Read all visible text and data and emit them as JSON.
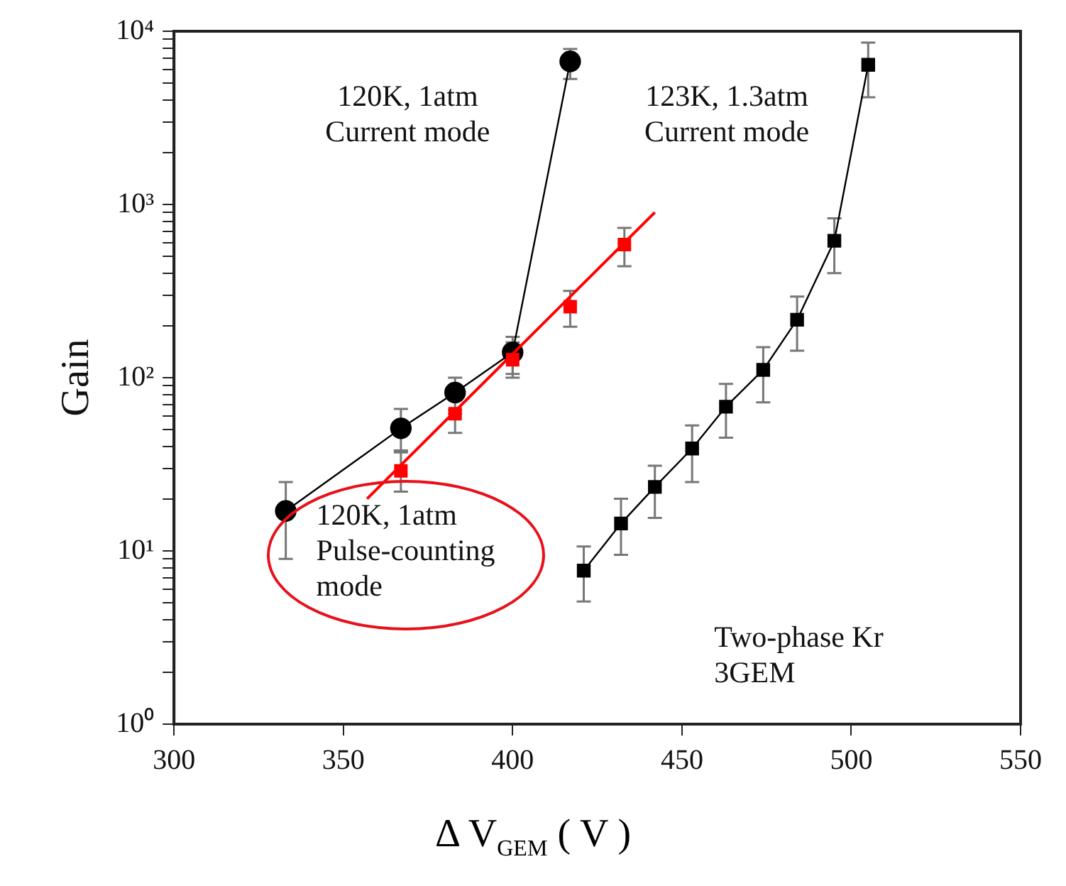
{
  "chart_data": {
    "type": "line",
    "ylabel": "Gain",
    "xlabel": "Δ V$_{GEM}$ ( V )",
    "log": "y",
    "grid": false,
    "legend": false,
    "xlim": [
      300,
      550
    ],
    "xticks": [
      300,
      350,
      400,
      450,
      500,
      550
    ],
    "ylim": [
      1,
      10000
    ],
    "yticks": [
      {
        "value": 1,
        "label": "10⁰"
      },
      {
        "value": 2,
        "label": null
      },
      {
        "value": 3,
        "label": null
      },
      {
        "value": 4,
        "label": null
      },
      {
        "value": 5,
        "label": null
      },
      {
        "value": 6,
        "label": null
      },
      {
        "value": 7,
        "label": null
      },
      {
        "value": 8,
        "label": null
      },
      {
        "value": 9,
        "label": null
      },
      {
        "value": 10,
        "label": "10¹"
      },
      {
        "value": 20,
        "label": null
      },
      {
        "value": 30,
        "label": null
      },
      {
        "value": 40,
        "label": null
      },
      {
        "value": 50,
        "label": null
      },
      {
        "value": 60,
        "label": null
      },
      {
        "value": 70,
        "label": null
      },
      {
        "value": 80,
        "label": null
      },
      {
        "value": 90,
        "label": null
      },
      {
        "value": 100,
        "label": "10²"
      },
      {
        "value": 200,
        "label": null
      },
      {
        "value": 300,
        "label": null
      },
      {
        "value": 400,
        "label": null
      },
      {
        "value": 500,
        "label": null
      },
      {
        "value": 600,
        "label": null
      },
      {
        "value": 700,
        "label": null
      },
      {
        "value": 800,
        "label": null
      },
      {
        "value": 900,
        "label": null
      },
      {
        "value": 1000,
        "label": "10³"
      },
      {
        "value": 2000,
        "label": null
      },
      {
        "value": 3000,
        "label": null
      },
      {
        "value": 4000,
        "label": null
      },
      {
        "value": 5000,
        "label": null
      },
      {
        "value": 6000,
        "label": null
      },
      {
        "value": 7000,
        "label": null
      },
      {
        "value": 8000,
        "label": null
      },
      {
        "value": 9000,
        "label": null
      },
      {
        "value": 10000,
        "label": "10⁴"
      }
    ],
    "series": [
      {
        "color": "#000000",
        "marker": "circle",
        "x": [
          333,
          367,
          383,
          400,
          417
        ],
        "values": [
          17,
          51,
          82,
          140,
          6700
        ],
        "errors": [
          [
            9,
            25
          ],
          [
            37,
            66
          ],
          [
            65,
            100
          ],
          [
            105,
            172
          ],
          [
            5300,
            7900
          ]
        ]
      },
      {
        "type": "scatter",
        "color": "#ff0000",
        "marker": "square",
        "x": [
          367,
          383,
          400,
          417,
          433
        ],
        "values": [
          29,
          62,
          127,
          257,
          587
        ],
        "errors": [
          [
            22,
            38
          ],
          [
            48,
            62
          ],
          [
            100,
            160
          ],
          [
            197,
            317
          ],
          [
            440,
            733
          ]
        ]
      },
      {
        "color": "#ff0000",
        "marker": "none",
        "x": [
          357,
          442
        ],
        "values": [
          20,
          900
        ]
      },
      {
        "color": "#000000",
        "marker": "square",
        "x": [
          421,
          432,
          442,
          453,
          463,
          474,
          484,
          495,
          505
        ],
        "values": [
          7.7,
          14.4,
          23.4,
          39,
          68,
          111,
          216,
          617,
          6400
        ],
        "errors": [
          [
            5.1,
            10.6
          ],
          [
            9.5,
            20
          ],
          [
            15.5,
            31
          ],
          [
            25,
            53
          ],
          [
            45,
            92
          ],
          [
            72,
            150
          ],
          [
            143,
            294
          ],
          [
            401,
            832
          ],
          [
            4160,
            8600
          ]
        ]
      }
    ],
    "annotations": [
      "120K, 1atm\nCurrent mode",
      "123K, 1.3atm\nCurrent mode",
      "120K, 1atm\nPulse-counting\nmode",
      "Two-phase Kr\n3GEM"
    ]
  }
}
